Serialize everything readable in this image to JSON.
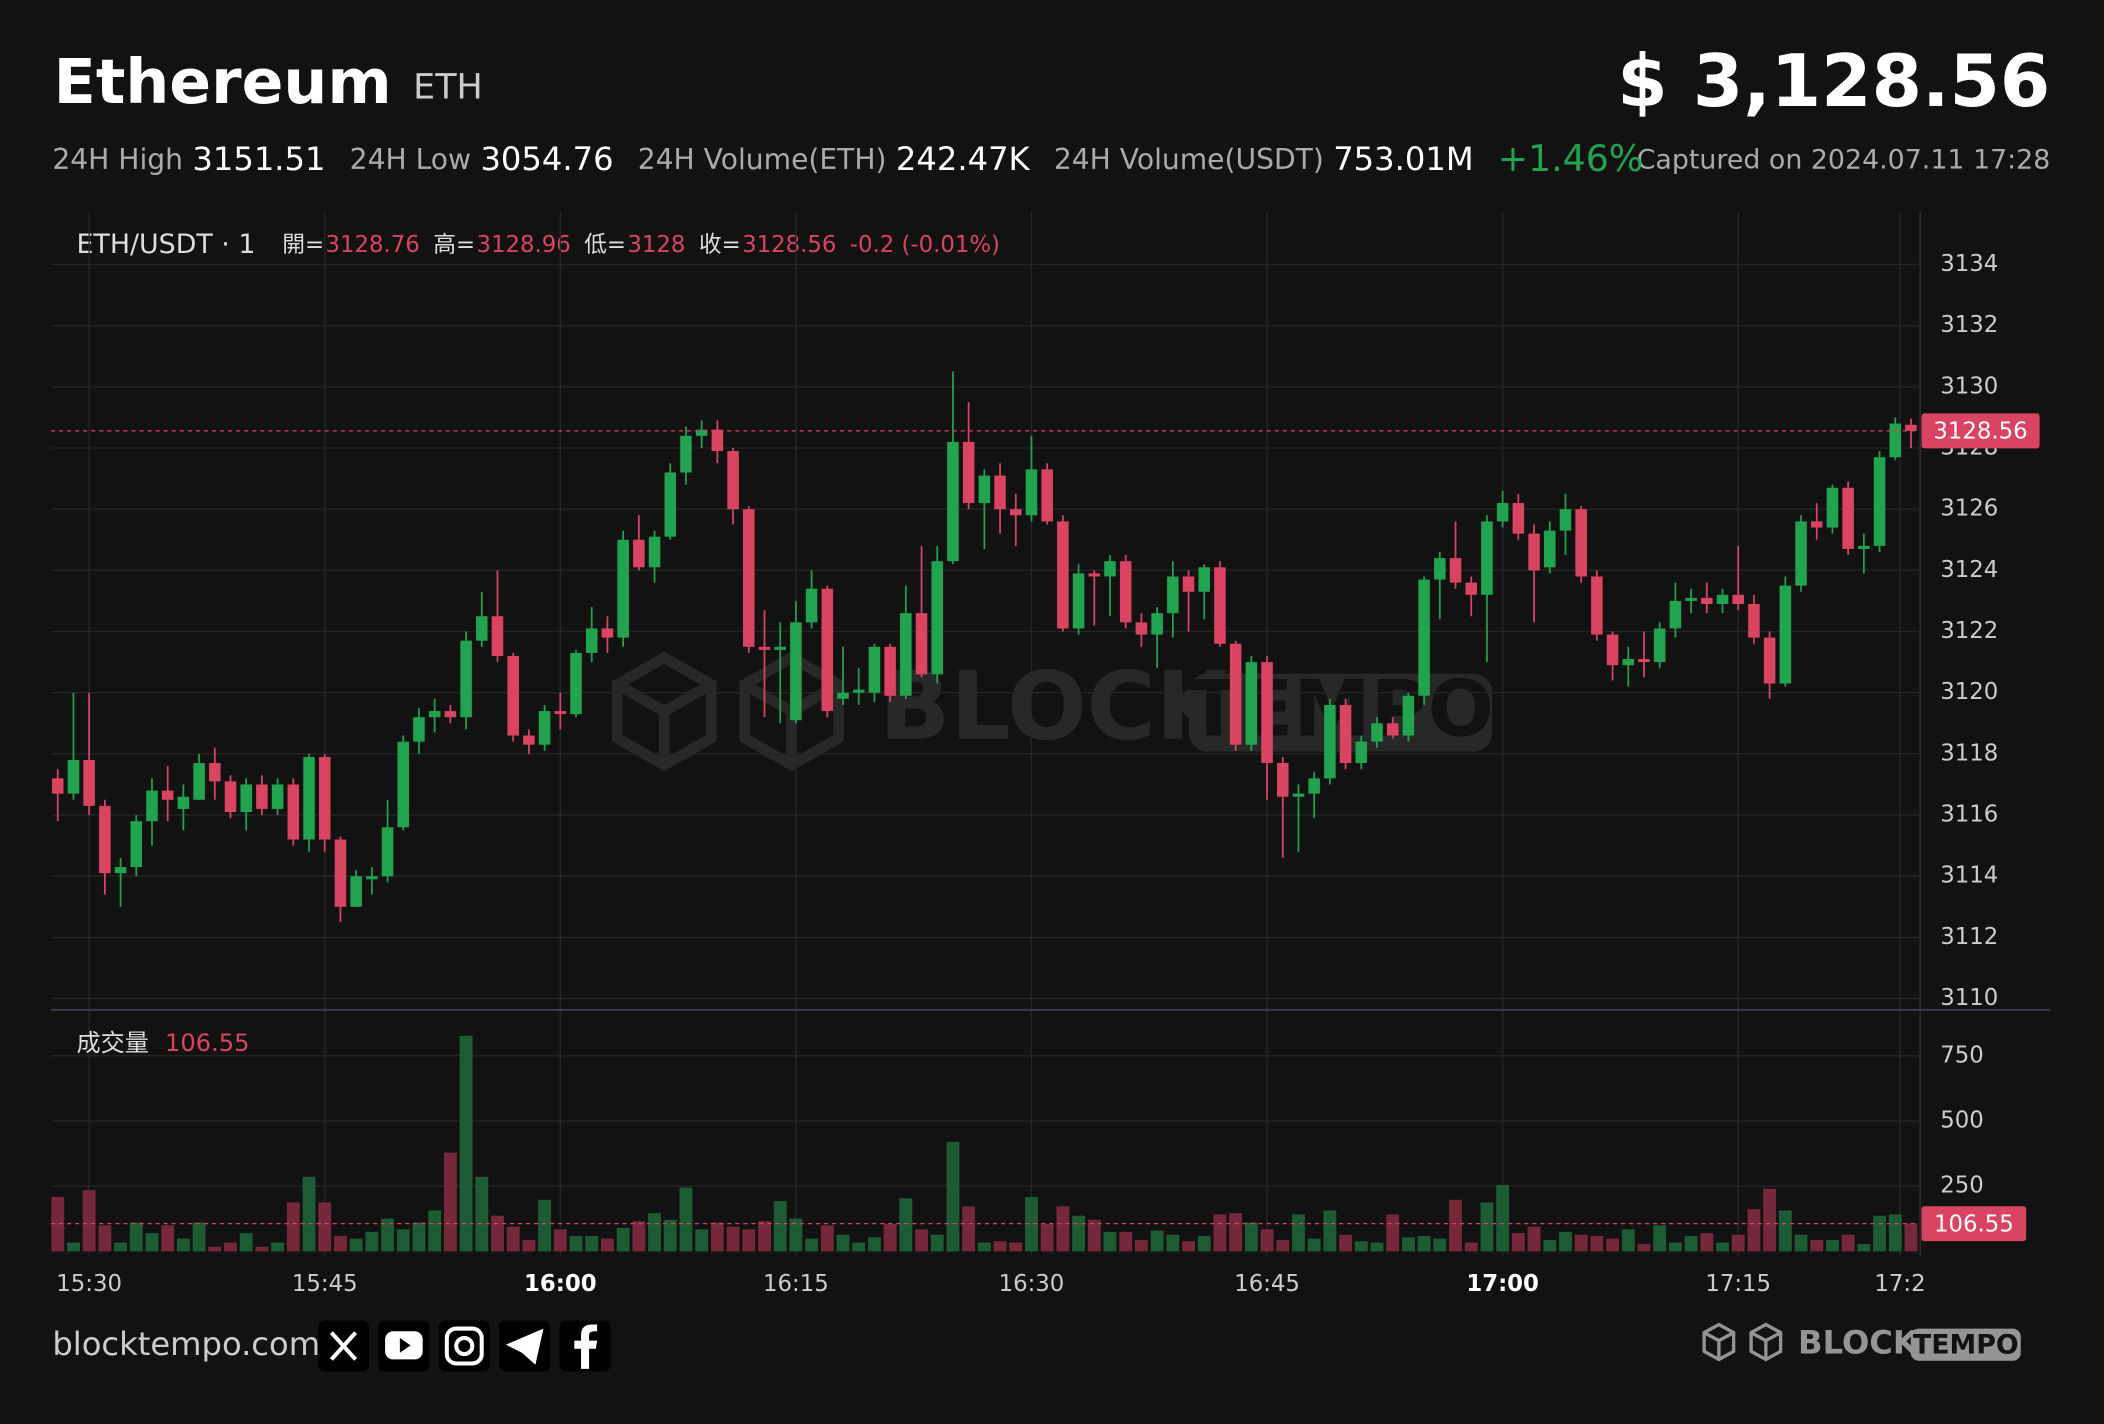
{
  "header": {
    "title": "Ethereum",
    "symbol": "ETH",
    "price": "$ 3,128.56",
    "stats": [
      {
        "label": "24H High",
        "value": "3151.51"
      },
      {
        "label": "24H Low",
        "value": "3054.76"
      },
      {
        "label": "24H Volume(ETH)",
        "value": "242.47K"
      },
      {
        "label": "24H Volume(USDT)",
        "value": "753.01M"
      }
    ],
    "change": "+1.46%",
    "captured": "Captured on 2024.07.11 17:28"
  },
  "chart_data": {
    "type": "candlestick",
    "pair": "ETH/USDT · 1",
    "legend": [
      {
        "label": "開=",
        "value": "3128.76"
      },
      {
        "label": "高=",
        "value": "3128.96"
      },
      {
        "label": "低=",
        "value": "3128"
      },
      {
        "label": "收=",
        "value": "3128.56"
      }
    ],
    "legend_change": "-0.2 (-0.01%)",
    "up_color": "#22a350",
    "down_color": "#da4463",
    "volume_up_color": "#1d5b34",
    "volume_down_color": "#74283a",
    "open": [
      3117.2,
      3116.7,
      3117.8,
      3116.3,
      3114.1,
      3114.3,
      3115.8,
      3116.8,
      3116.2,
      3116.5,
      3117.7,
      3117.1,
      3116.1,
      3117,
      3116.2,
      3117,
      3115.2,
      3117.9,
      3115.2,
      3113,
      3113.9,
      3114,
      3115.6,
      3118.4,
      3119.2,
      3119.4,
      3119.2,
      3121.7,
      3122.5,
      3121.2,
      3118.6,
      3118.3,
      3119.4,
      3119.3,
      3121.3,
      3122.1,
      3121.8,
      3125,
      3124.1,
      3125.1,
      3127.2,
      3128.4,
      3128.6,
      3127.9,
      3126,
      3121.5,
      3121.4,
      3119.1,
      3122.3,
      3123.4,
      3119.8,
      3120,
      3120,
      3121.5,
      3119.9,
      3122.6,
      3120.6,
      3124.3,
      3128.2,
      3126.2,
      3127.1,
      3126,
      3125.8,
      3127.3,
      3125.6,
      3122.1,
      3123.9,
      3123.8,
      3124.3,
      3122.3,
      3121.9,
      3122.6,
      3123.8,
      3123.3,
      3124.1,
      3121.6,
      3118.3,
      3121,
      3117.7,
      3116.6,
      3116.7,
      3117.2,
      3119.6,
      3117.7,
      3118.4,
      3119,
      3118.6,
      3119.9,
      3123.7,
      3124.4,
      3123.6,
      3123.2,
      3125.6,
      3126.2,
      3125.2,
      3124.1,
      3125.3,
      3126,
      3123.8,
      3121.9,
      3120.9,
      3121.1,
      3121,
      3122.1,
      3123,
      3123.1,
      3122.9,
      3123.2,
      3122.9,
      3121.8,
      3120.3,
      3123.5,
      3125.6,
      3125.4,
      3126.7,
      3124.7,
      3124.8,
      3127.7,
      3128.76
    ],
    "high": [
      3117.5,
      3120,
      3120,
      3116.5,
      3114.6,
      3116,
      3117.2,
      3117.6,
      3117,
      3118,
      3118.2,
      3117.3,
      3117.2,
      3117.3,
      3117.2,
      3117.2,
      3118,
      3118,
      3115.3,
      3114.2,
      3114.3,
      3116.5,
      3118.6,
      3119.5,
      3119.8,
      3119.6,
      3122,
      3123.3,
      3124,
      3121.3,
      3118.8,
      3119.6,
      3120,
      3121.4,
      3122.8,
      3122.5,
      3125.3,
      3125.8,
      3125.3,
      3127.5,
      3128.7,
      3128.9,
      3128.9,
      3128,
      3126.1,
      3122.7,
      3122.3,
      3123,
      3124,
      3123.5,
      3121.5,
      3120.8,
      3121.6,
      3121.6,
      3123.5,
      3124.8,
      3124.8,
      3130.5,
      3129.5,
      3127.3,
      3127.5,
      3126.5,
      3128.4,
      3127.5,
      3125.8,
      3124.2,
      3124,
      3124.5,
      3124.5,
      3122.6,
      3122.8,
      3124.3,
      3124,
      3124.2,
      3124.3,
      3121.7,
      3121.2,
      3121.2,
      3117.9,
      3117,
      3117.4,
      3119.8,
      3119.8,
      3118.6,
      3119.2,
      3119.2,
      3120,
      3123.8,
      3124.6,
      3125.6,
      3123.8,
      3125.8,
      3126.6,
      3126.5,
      3125.5,
      3125.6,
      3126.5,
      3126.1,
      3124,
      3122,
      3121.5,
      3122,
      3122.3,
      3123.6,
      3123.4,
      3123.6,
      3123.4,
      3124.8,
      3123.2,
      3122,
      3123.8,
      3125.8,
      3126.2,
      3126.8,
      3126.9,
      3125.2,
      3127.9,
      3129,
      3128.96
    ],
    "low": [
      3115.8,
      3116.5,
      3116,
      3113.4,
      3113,
      3114,
      3115,
      3115.8,
      3115.5,
      3116.5,
      3116.5,
      3115.9,
      3115.5,
      3116,
      3116,
      3115,
      3114.8,
      3114.8,
      3112.5,
      3113,
      3113.4,
      3113.8,
      3115.5,
      3118,
      3118.7,
      3119,
      3118.8,
      3121.5,
      3121,
      3118.4,
      3118,
      3118.1,
      3118.8,
      3119.2,
      3121,
      3121.3,
      3121.5,
      3124,
      3123.6,
      3125,
      3126.8,
      3128,
      3127.5,
      3125.5,
      3121.3,
      3119.2,
      3119,
      3119,
      3122.1,
      3119.2,
      3119.6,
      3119.6,
      3119.7,
      3119.7,
      3119.8,
      3120.5,
      3120.3,
      3124.2,
      3126,
      3124.7,
      3125.2,
      3124.8,
      3125.6,
      3125.5,
      3122,
      3121.9,
      3122.2,
      3122.5,
      3122.1,
      3121.5,
      3120.8,
      3121.8,
      3122,
      3122.4,
      3121.5,
      3118.1,
      3118.1,
      3116.5,
      3114.6,
      3114.8,
      3115.9,
      3117,
      3117.5,
      3117.5,
      3118.2,
      3118.5,
      3118.4,
      3119.6,
      3122.4,
      3123.4,
      3122.5,
      3121,
      3125.4,
      3125,
      3122.3,
      3123.9,
      3124.5,
      3123.6,
      3121.7,
      3120.4,
      3120.2,
      3120.5,
      3120.8,
      3121.8,
      3122.6,
      3122.6,
      3122.6,
      3122.7,
      3121.6,
      3119.8,
      3120.2,
      3123.3,
      3125,
      3125.2,
      3124.5,
      3123.9,
      3124.6,
      3127.6,
      3128
    ],
    "close": [
      3116.7,
      3117.8,
      3116.3,
      3114.1,
      3114.3,
      3115.8,
      3116.8,
      3116.5,
      3116.6,
      3117.7,
      3117.1,
      3116.1,
      3117,
      3116.2,
      3117,
      3115.2,
      3117.9,
      3115.2,
      3113,
      3114,
      3114,
      3115.6,
      3118.4,
      3119.2,
      3119.4,
      3119.2,
      3121.7,
      3122.5,
      3121.2,
      3118.6,
      3118.3,
      3119.4,
      3119.3,
      3121.3,
      3122.1,
      3121.8,
      3125,
      3124.1,
      3125.1,
      3127.2,
      3128.4,
      3128.6,
      3127.9,
      3126,
      3121.5,
      3121.4,
      3121.5,
      3122.3,
      3123.4,
      3119.4,
      3120,
      3120.1,
      3121.5,
      3119.9,
      3122.6,
      3120.6,
      3124.3,
      3128.2,
      3126.2,
      3127.1,
      3126,
      3125.8,
      3127.3,
      3125.6,
      3122.1,
      3123.9,
      3123.8,
      3124.3,
      3122.3,
      3121.9,
      3122.6,
      3123.8,
      3123.3,
      3124.1,
      3121.6,
      3118.3,
      3121,
      3117.7,
      3116.6,
      3116.7,
      3117.2,
      3119.6,
      3117.7,
      3118.4,
      3119,
      3118.6,
      3119.9,
      3123.7,
      3124.4,
      3123.6,
      3123.2,
      3125.6,
      3126.2,
      3125.2,
      3124,
      3125.3,
      3126,
      3123.8,
      3121.9,
      3120.9,
      3121.1,
      3121,
      3122.1,
      3123,
      3123.1,
      3122.9,
      3123.2,
      3122.9,
      3121.8,
      3120.3,
      3123.5,
      3125.6,
      3125.4,
      3126.7,
      3124.7,
      3124.8,
      3127.7,
      3128.8,
      3128.56
    ],
    "xlim": [
      -0.43,
      118.5
    ],
    "xticks": [
      {
        "value": 2,
        "label": "15:30"
      },
      {
        "value": 17,
        "label": "15:45"
      },
      {
        "value": 32,
        "label": "16:00",
        "bold": true
      },
      {
        "value": 47,
        "label": "16:15"
      },
      {
        "value": 62,
        "label": "16:30"
      },
      {
        "value": 77,
        "label": "16:45"
      },
      {
        "value": 92,
        "label": "17:00",
        "bold": true
      },
      {
        "value": 107,
        "label": "17:15"
      },
      {
        "value": 117.3,
        "label": "17:2"
      }
    ],
    "ylim": [
      3109.74,
      3135.71
    ],
    "yticks": [
      3110,
      3112,
      3114,
      3116,
      3118,
      3120,
      3122,
      3124,
      3126,
      3128,
      3130,
      3132,
      3134
    ],
    "last_price_label": "3128.56",
    "volume": {
      "title": "成交量",
      "last_label": "106.55",
      "ylim": [
        0,
        900
      ],
      "yticks": [
        250,
        500,
        750
      ],
      "values": [
        209,
        34,
        235,
        100,
        34,
        111,
        70,
        100,
        49,
        111,
        18,
        34,
        70,
        18,
        34,
        188,
        286,
        188,
        59,
        49,
        75,
        126,
        85,
        111,
        157,
        379,
        827,
        286,
        137,
        95,
        44,
        198,
        85,
        59,
        59,
        49,
        90,
        116,
        147,
        121,
        245,
        85,
        111,
        95,
        85,
        116,
        193,
        126,
        49,
        100,
        64,
        34,
        54,
        106,
        204,
        85,
        64,
        420,
        173,
        34,
        39,
        34,
        209,
        106,
        173,
        137,
        121,
        75,
        75,
        44,
        80,
        64,
        39,
        59,
        142,
        147,
        111,
        85,
        44,
        142,
        49,
        157,
        64,
        39,
        34,
        142,
        54,
        59,
        49,
        198,
        34,
        188,
        255,
        70,
        95,
        44,
        75,
        64,
        59,
        49,
        85,
        28,
        100,
        34,
        59,
        70,
        34,
        64,
        162,
        240,
        157,
        64,
        44,
        44,
        64,
        28,
        137,
        142,
        106.55
      ]
    }
  },
  "footer": {
    "site": "blocktempo.com",
    "brand": [
      "BLOCK",
      "TEMPO"
    ]
  }
}
